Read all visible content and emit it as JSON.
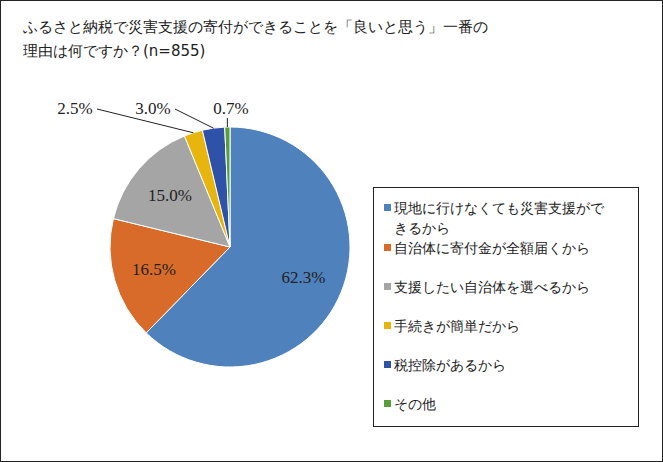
{
  "chart_data": {
    "type": "pie",
    "title": "ふるさと納税で災害支援の寄付ができることを「良いと思う」一番の\n理由は何ですか？(n=855)",
    "categories": [
      "現地に行けなくても災害支援ができるから",
      "自治体に寄付金が全額届くから",
      "支援したい自治体を選べるから",
      "手続きが簡単だから",
      "税控除があるから",
      "その他"
    ],
    "values": [
      62.3,
      16.5,
      15,
      2.5,
      3,
      0.7
    ],
    "value_labels": [
      "62.3%",
      "16.5%",
      "15.0%",
      "2.5%",
      "3.0%",
      "0.7%"
    ],
    "colors": [
      "#4f81bd",
      "#d86b29",
      "#a5a5a5",
      "#e8b40e",
      "#2e52a8",
      "#5a9e3a"
    ],
    "data_labels": true,
    "legend": "right"
  }
}
